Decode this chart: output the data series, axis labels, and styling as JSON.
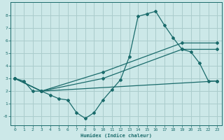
{
  "xlabel": "Humidex (Indice chaleur)",
  "bg_color": "#cce8e8",
  "grid_color": "#aacccc",
  "line_color": "#1a6b6b",
  "xlim": [
    -0.5,
    23.5
  ],
  "ylim": [
    -0.7,
    9.0
  ],
  "xticks": [
    0,
    1,
    2,
    3,
    4,
    5,
    6,
    7,
    8,
    9,
    10,
    11,
    12,
    13,
    14,
    15,
    16,
    17,
    18,
    19,
    20,
    21,
    22,
    23
  ],
  "yticks": [
    0,
    1,
    2,
    3,
    4,
    5,
    6,
    7,
    8
  ],
  "ytick_labels": [
    "-0",
    "1",
    "2",
    "3",
    "4",
    "5",
    "6",
    "7",
    "8"
  ],
  "line1_x": [
    0,
    1,
    2,
    3,
    4,
    5,
    6,
    7,
    8,
    9,
    10,
    11,
    12,
    13,
    14,
    15,
    16,
    17,
    18,
    19,
    20,
    21,
    22,
    23
  ],
  "line1_y": [
    3.0,
    2.8,
    2.0,
    2.0,
    1.7,
    1.4,
    1.3,
    0.3,
    -0.15,
    0.3,
    1.3,
    2.1,
    2.9,
    4.7,
    7.9,
    8.1,
    8.3,
    7.2,
    6.2,
    5.3,
    5.1,
    4.2,
    2.8,
    2.8
  ],
  "line2_x": [
    0,
    3,
    23
  ],
  "line2_y": [
    3.0,
    2.0,
    2.8
  ],
  "line3_x": [
    0,
    3,
    10,
    19,
    23
  ],
  "line3_y": [
    3.0,
    2.0,
    3.0,
    5.3,
    5.3
  ],
  "line4_x": [
    0,
    3,
    10,
    19,
    23
  ],
  "line4_y": [
    3.0,
    2.0,
    3.5,
    5.8,
    5.8
  ]
}
